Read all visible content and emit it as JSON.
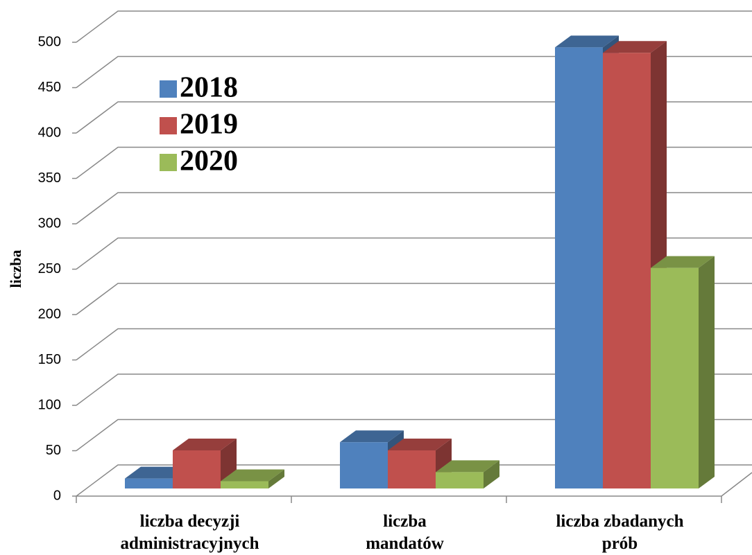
{
  "chart_data": {
    "type": "bar3d",
    "y_label": "liczba",
    "categories": [
      [
        "liczba decyzji",
        "administracyjnych"
      ],
      [
        "liczba",
        "mandatów"
      ],
      [
        "liczba zbadanych",
        "prób"
      ]
    ],
    "series": [
      {
        "name": "2018",
        "color": "#4f81bd",
        "values": [
          11,
          51,
          486
        ]
      },
      {
        "name": "2019",
        "color": "#c0504d",
        "values": [
          42,
          42,
          480
        ]
      },
      {
        "name": "2020",
        "color": "#9bbb59",
        "values": [
          8,
          18,
          243
        ]
      }
    ],
    "ylim": [
      0,
      500
    ],
    "yticks": [
      0,
      50,
      100,
      150,
      200,
      250,
      300,
      350,
      400,
      450,
      500
    ],
    "grid": true,
    "legend": "upper left"
  }
}
